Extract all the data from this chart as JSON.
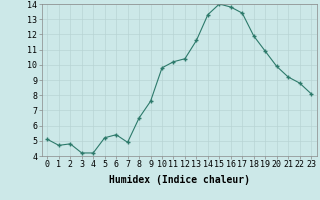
{
  "x": [
    0,
    1,
    2,
    3,
    4,
    5,
    6,
    7,
    8,
    9,
    10,
    11,
    12,
    13,
    14,
    15,
    16,
    17,
    18,
    19,
    20,
    21,
    22,
    23
  ],
  "y": [
    5.1,
    4.7,
    4.8,
    4.2,
    4.2,
    5.2,
    5.4,
    4.9,
    6.5,
    7.6,
    9.8,
    10.2,
    10.4,
    11.6,
    13.3,
    14.0,
    13.8,
    13.4,
    11.9,
    10.9,
    9.9,
    9.2,
    8.8,
    8.1
  ],
  "xlabel": "Humidex (Indice chaleur)",
  "ylim": [
    4,
    14
  ],
  "yticks": [
    4,
    5,
    6,
    7,
    8,
    9,
    10,
    11,
    12,
    13,
    14
  ],
  "line_color": "#2d7a6b",
  "marker_color": "#2d7a6b",
  "bg_color": "#cce8e8",
  "grid_color": "#b8d4d4",
  "tick_label_fontsize": 6,
  "xlabel_fontsize": 7
}
